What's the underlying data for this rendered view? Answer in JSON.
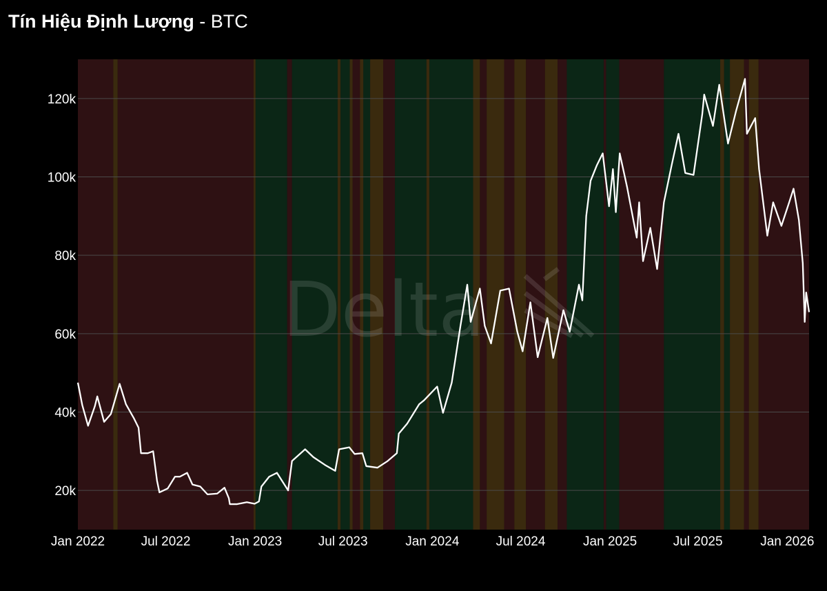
{
  "title": {
    "main": "Tín Hiệu Định Lượng",
    "separator": " - ",
    "symbol": "BTC"
  },
  "watermark": "Delta",
  "colors": {
    "background": "#000000",
    "bearish": "#2e1113",
    "bullish": "#0b2616",
    "neutral": "#3a2a0e",
    "line": "#ffffff",
    "grid": "#4a4a4a"
  },
  "chart_data": {
    "type": "line",
    "x_axis": "date",
    "xlim": [
      "2022-01-01",
      "2026-02-15"
    ],
    "ylim": [
      10000,
      130000
    ],
    "grid": "horizontal",
    "x_ticks": [
      {
        "date": "2022-01-01",
        "label": "Jan 2022"
      },
      {
        "date": "2022-07-01",
        "label": "Jul 2022"
      },
      {
        "date": "2023-01-01",
        "label": "Jan 2023"
      },
      {
        "date": "2023-07-01",
        "label": "Jul 2023"
      },
      {
        "date": "2024-01-01",
        "label": "Jan 2024"
      },
      {
        "date": "2024-07-01",
        "label": "Jul 2024"
      },
      {
        "date": "2025-01-01",
        "label": "Jan 2025"
      },
      {
        "date": "2025-07-01",
        "label": "Jul 2025"
      },
      {
        "date": "2026-01-01",
        "label": "Jan 2026"
      }
    ],
    "y_ticks": [
      {
        "value": 20000,
        "label": "20k"
      },
      {
        "value": 40000,
        "label": "40k"
      },
      {
        "value": 60000,
        "label": "60k"
      },
      {
        "value": 80000,
        "label": "80k"
      },
      {
        "value": 100000,
        "label": "100k"
      },
      {
        "value": 120000,
        "label": "120k"
      }
    ],
    "series": [
      {
        "color": "#ffffff",
        "points": [
          [
            "2022-01-01",
            47500
          ],
          [
            "2022-01-10",
            41800
          ],
          [
            "2022-01-22",
            36500
          ],
          [
            "2022-02-05",
            41500
          ],
          [
            "2022-02-10",
            44000
          ],
          [
            "2022-02-24",
            37500
          ],
          [
            "2022-03-10",
            39500
          ],
          [
            "2022-03-28",
            47200
          ],
          [
            "2022-04-10",
            42000
          ],
          [
            "2022-04-26",
            38500
          ],
          [
            "2022-05-06",
            36000
          ],
          [
            "2022-05-11",
            29500
          ],
          [
            "2022-05-25",
            29500
          ],
          [
            "2022-06-05",
            30000
          ],
          [
            "2022-06-13",
            22500
          ],
          [
            "2022-06-18",
            19500
          ],
          [
            "2022-07-05",
            20500
          ],
          [
            "2022-07-20",
            23500
          ],
          [
            "2022-07-30",
            23500
          ],
          [
            "2022-08-14",
            24500
          ],
          [
            "2022-08-25",
            21500
          ],
          [
            "2022-09-10",
            21000
          ],
          [
            "2022-09-25",
            19000
          ],
          [
            "2022-10-15",
            19200
          ],
          [
            "2022-10-30",
            20700
          ],
          [
            "2022-11-08",
            18000
          ],
          [
            "2022-11-10",
            16500
          ],
          [
            "2022-11-25",
            16500
          ],
          [
            "2022-12-15",
            17000
          ],
          [
            "2022-12-31",
            16600
          ],
          [
            "2023-01-09",
            17200
          ],
          [
            "2023-01-14",
            21000
          ],
          [
            "2023-01-30",
            23500
          ],
          [
            "2023-02-15",
            24500
          ],
          [
            "2023-03-10",
            20000
          ],
          [
            "2023-03-18",
            27500
          ],
          [
            "2023-04-14",
            30500
          ],
          [
            "2023-05-01",
            28500
          ],
          [
            "2023-05-25",
            26500
          ],
          [
            "2023-06-15",
            25000
          ],
          [
            "2023-06-23",
            30500
          ],
          [
            "2023-07-14",
            31000
          ],
          [
            "2023-07-25",
            29300
          ],
          [
            "2023-08-10",
            29500
          ],
          [
            "2023-08-18",
            26200
          ],
          [
            "2023-09-10",
            25800
          ],
          [
            "2023-10-01",
            27500
          ],
          [
            "2023-10-20",
            29500
          ],
          [
            "2023-10-24",
            34500
          ],
          [
            "2023-11-10",
            37000
          ],
          [
            "2023-12-05",
            42000
          ],
          [
            "2023-12-15",
            43000
          ],
          [
            "2024-01-11",
            46500
          ],
          [
            "2024-01-23",
            39800
          ],
          [
            "2024-02-10",
            47500
          ],
          [
            "2024-02-28",
            62000
          ],
          [
            "2024-03-13",
            72500
          ],
          [
            "2024-03-20",
            63000
          ],
          [
            "2024-04-08",
            71500
          ],
          [
            "2024-04-18",
            62000
          ],
          [
            "2024-05-01",
            57500
          ],
          [
            "2024-05-20",
            71000
          ],
          [
            "2024-06-07",
            71500
          ],
          [
            "2024-06-24",
            60500
          ],
          [
            "2024-07-05",
            55500
          ],
          [
            "2024-07-21",
            68000
          ],
          [
            "2024-08-05",
            54000
          ],
          [
            "2024-08-25",
            64000
          ],
          [
            "2024-09-06",
            53800
          ],
          [
            "2024-09-27",
            66000
          ],
          [
            "2024-10-10",
            60500
          ],
          [
            "2024-10-29",
            72500
          ],
          [
            "2024-11-05",
            68500
          ],
          [
            "2024-11-13",
            90000
          ],
          [
            "2024-11-22",
            99000
          ],
          [
            "2024-12-05",
            103000
          ],
          [
            "2024-12-17",
            106000
          ],
          [
            "2024-12-30",
            92500
          ],
          [
            "2025-01-07",
            102000
          ],
          [
            "2025-01-13",
            91000
          ],
          [
            "2025-01-21",
            106000
          ],
          [
            "2025-02-05",
            97500
          ],
          [
            "2025-02-25",
            84500
          ],
          [
            "2025-03-02",
            93500
          ],
          [
            "2025-03-10",
            78500
          ],
          [
            "2025-03-25",
            87000
          ],
          [
            "2025-04-08",
            76500
          ],
          [
            "2025-04-22",
            93500
          ],
          [
            "2025-05-08",
            103000
          ],
          [
            "2025-05-22",
            111000
          ],
          [
            "2025-06-05",
            101000
          ],
          [
            "2025-06-22",
            100500
          ],
          [
            "2025-07-10",
            116000
          ],
          [
            "2025-07-14",
            121000
          ],
          [
            "2025-08-01",
            113000
          ],
          [
            "2025-08-14",
            123500
          ],
          [
            "2025-09-01",
            108500
          ],
          [
            "2025-09-18",
            117000
          ],
          [
            "2025-10-06",
            125000
          ],
          [
            "2025-10-10",
            111000
          ],
          [
            "2025-10-27",
            115000
          ],
          [
            "2025-11-04",
            102000
          ],
          [
            "2025-11-21",
            85000
          ],
          [
            "2025-12-03",
            93500
          ],
          [
            "2025-12-20",
            87500
          ],
          [
            "2026-01-05",
            93500
          ],
          [
            "2026-01-14",
            97000
          ],
          [
            "2026-01-25",
            89000
          ],
          [
            "2026-02-02",
            78000
          ],
          [
            "2026-02-06",
            63000
          ],
          [
            "2026-02-09",
            70500
          ],
          [
            "2026-02-15",
            65500
          ]
        ]
      }
    ],
    "signal_bands": [
      {
        "start": "2022-01-01",
        "end": "2022-03-15",
        "state": "bearish"
      },
      {
        "start": "2022-03-15",
        "end": "2022-03-24",
        "state": "neutral"
      },
      {
        "start": "2022-03-24",
        "end": "2022-12-29",
        "state": "bearish"
      },
      {
        "start": "2022-12-29",
        "end": "2023-01-02",
        "state": "neutral"
      },
      {
        "start": "2023-01-02",
        "end": "2023-03-08",
        "state": "bullish"
      },
      {
        "start": "2023-03-08",
        "end": "2023-03-18",
        "state": "bearish"
      },
      {
        "start": "2023-03-18",
        "end": "2023-06-20",
        "state": "bullish"
      },
      {
        "start": "2023-06-20",
        "end": "2023-06-26",
        "state": "neutral"
      },
      {
        "start": "2023-06-26",
        "end": "2023-07-15",
        "state": "bullish"
      },
      {
        "start": "2023-07-15",
        "end": "2023-07-21",
        "state": "neutral"
      },
      {
        "start": "2023-07-21",
        "end": "2023-08-05",
        "state": "bearish"
      },
      {
        "start": "2023-08-05",
        "end": "2023-08-12",
        "state": "neutral"
      },
      {
        "start": "2023-08-12",
        "end": "2023-08-26",
        "state": "bullish"
      },
      {
        "start": "2023-08-26",
        "end": "2023-09-22",
        "state": "neutral"
      },
      {
        "start": "2023-09-22",
        "end": "2023-10-16",
        "state": "bearish"
      },
      {
        "start": "2023-10-16",
        "end": "2023-12-20",
        "state": "bullish"
      },
      {
        "start": "2023-12-20",
        "end": "2023-12-26",
        "state": "neutral"
      },
      {
        "start": "2023-12-26",
        "end": "2024-03-25",
        "state": "bullish"
      },
      {
        "start": "2024-03-25",
        "end": "2024-04-08",
        "state": "neutral"
      },
      {
        "start": "2024-04-08",
        "end": "2024-04-22",
        "state": "bearish"
      },
      {
        "start": "2024-04-22",
        "end": "2024-05-28",
        "state": "neutral"
      },
      {
        "start": "2024-05-28",
        "end": "2024-06-18",
        "state": "bearish"
      },
      {
        "start": "2024-06-18",
        "end": "2024-07-12",
        "state": "neutral"
      },
      {
        "start": "2024-07-12",
        "end": "2024-08-20",
        "state": "bearish"
      },
      {
        "start": "2024-08-20",
        "end": "2024-09-15",
        "state": "neutral"
      },
      {
        "start": "2024-09-15",
        "end": "2024-10-04",
        "state": "bearish"
      },
      {
        "start": "2024-10-04",
        "end": "2024-12-19",
        "state": "bullish"
      },
      {
        "start": "2024-12-19",
        "end": "2024-12-24",
        "state": "bearish"
      },
      {
        "start": "2024-12-24",
        "end": "2025-01-20",
        "state": "bullish"
      },
      {
        "start": "2025-01-20",
        "end": "2025-04-22",
        "state": "bearish"
      },
      {
        "start": "2025-04-22",
        "end": "2025-08-16",
        "state": "bullish"
      },
      {
        "start": "2025-08-16",
        "end": "2025-08-24",
        "state": "neutral"
      },
      {
        "start": "2025-08-24",
        "end": "2025-09-05",
        "state": "bullish"
      },
      {
        "start": "2025-09-05",
        "end": "2025-10-04",
        "state": "neutral"
      },
      {
        "start": "2025-10-04",
        "end": "2025-10-14",
        "state": "bearish"
      },
      {
        "start": "2025-10-14",
        "end": "2025-11-03",
        "state": "neutral"
      },
      {
        "start": "2025-11-03",
        "end": "2026-02-15",
        "state": "bearish"
      }
    ]
  }
}
